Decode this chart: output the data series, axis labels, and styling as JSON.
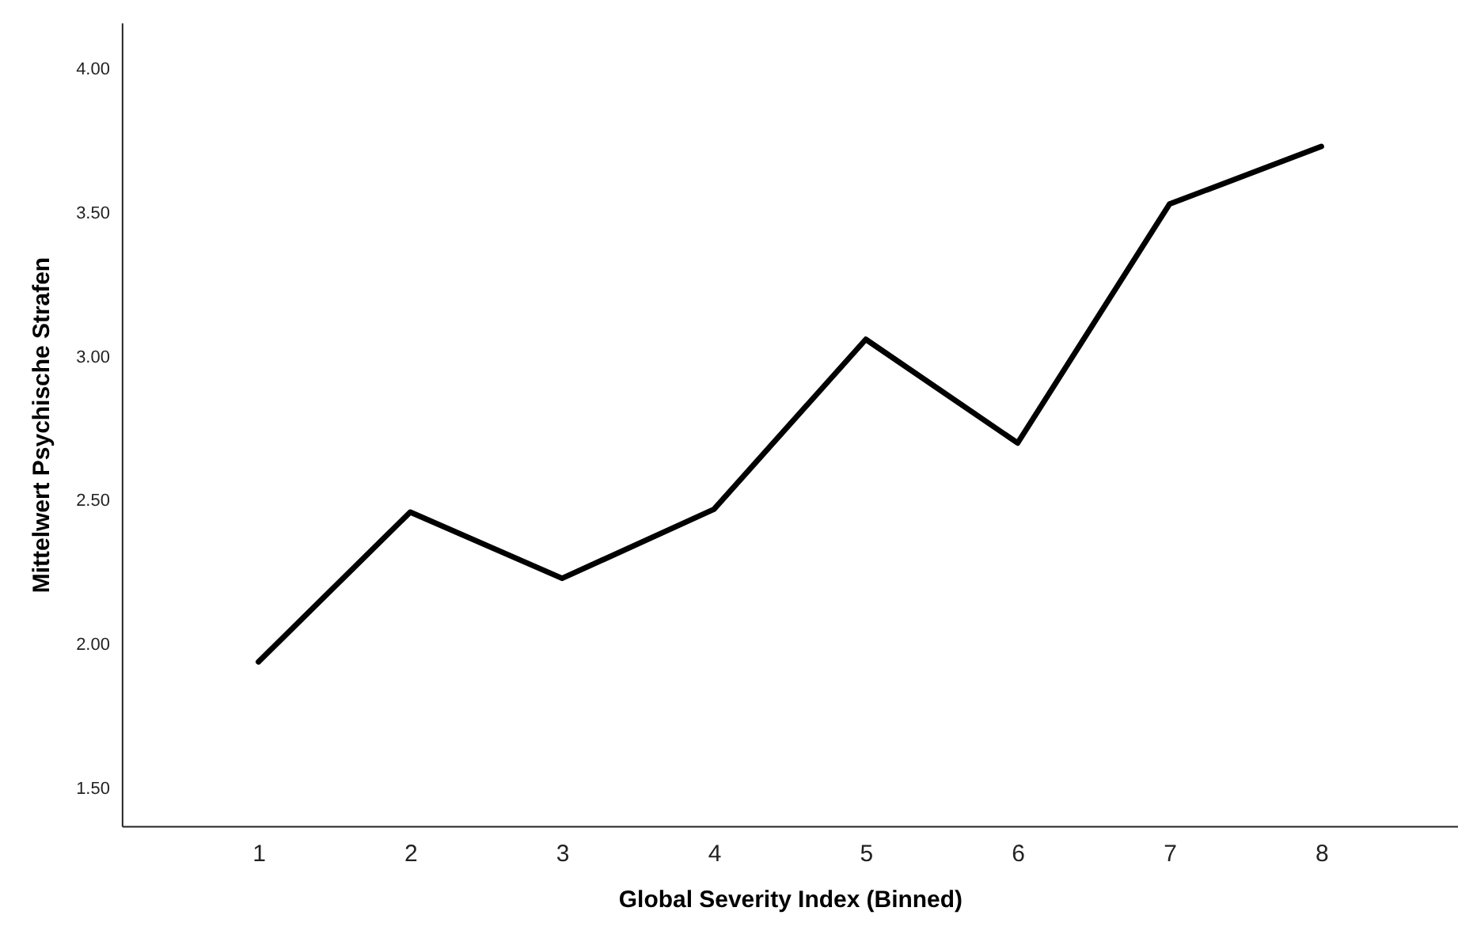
{
  "chart_data": {
    "type": "line",
    "xlabel": "Global Severity Index (Binned)",
    "ylabel": "Mittelwert Psychische Strafen",
    "categories": [
      "1",
      "2",
      "3",
      "4",
      "5",
      "6",
      "7",
      "8"
    ],
    "series": [
      {
        "color": "#000000",
        "values": [
          1.94,
          2.46,
          2.23,
          2.47,
          3.06,
          2.7,
          3.53,
          3.73
        ]
      }
    ],
    "ylim": [
      1.37,
      4.16
    ],
    "yticks": [
      {
        "value": 1.5,
        "label": "1.50"
      },
      {
        "value": 2,
        "label": "2.00"
      },
      {
        "value": 2.5,
        "label": "2.50"
      },
      {
        "value": 3,
        "label": "3.00"
      },
      {
        "value": 3.5,
        "label": "3.50"
      },
      {
        "value": 4,
        "label": "4.00"
      }
    ],
    "grid": false,
    "marker": "none",
    "line_style": "solid"
  }
}
